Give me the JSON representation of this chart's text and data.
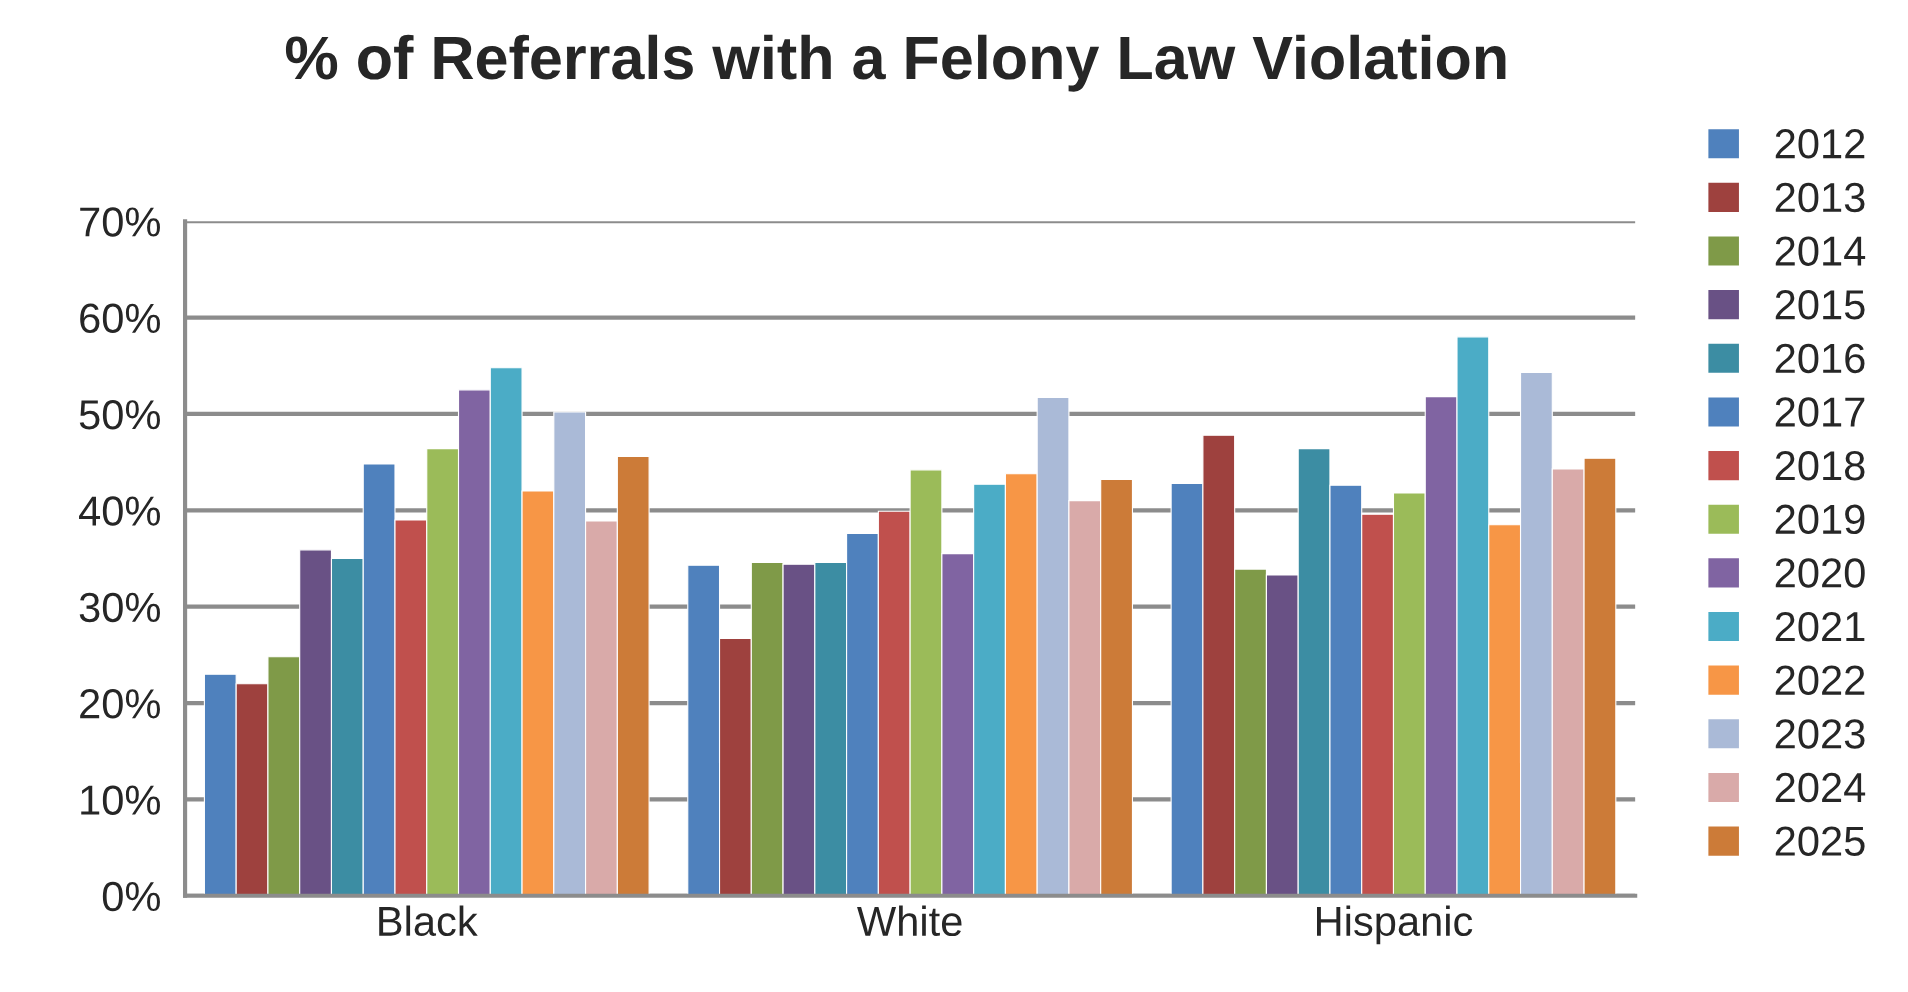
{
  "chart_data": {
    "type": "bar",
    "title": "% of Referrals with a Felony Law Violation",
    "categories": [
      "Black",
      "White",
      "Hispanic"
    ],
    "series": [
      {
        "name": "2012",
        "color": "#4f81bd",
        "values": [
          23.0,
          34.3,
          42.8
        ]
      },
      {
        "name": "2013",
        "color": "#9e413e",
        "values": [
          22.0,
          26.7,
          47.8
        ]
      },
      {
        "name": "2014",
        "color": "#7f9a48",
        "values": [
          24.8,
          34.6,
          33.9
        ]
      },
      {
        "name": "2015",
        "color": "#695185",
        "values": [
          35.9,
          34.4,
          33.3
        ]
      },
      {
        "name": "2016",
        "color": "#3c8da3",
        "values": [
          35.0,
          34.6,
          46.4
        ]
      },
      {
        "name": "2017",
        "color": "#4f81bd",
        "values": [
          44.8,
          37.6,
          42.6
        ]
      },
      {
        "name": "2018",
        "color": "#c0504d",
        "values": [
          39.0,
          39.9,
          39.6
        ]
      },
      {
        "name": "2019",
        "color": "#9bbb59",
        "values": [
          46.4,
          44.2,
          41.8
        ]
      },
      {
        "name": "2020",
        "color": "#8064a2",
        "values": [
          52.5,
          35.5,
          51.8
        ]
      },
      {
        "name": "2021",
        "color": "#4bacc6",
        "values": [
          54.8,
          42.7,
          58.0
        ]
      },
      {
        "name": "2022",
        "color": "#f79646",
        "values": [
          42.0,
          43.8,
          38.5
        ]
      },
      {
        "name": "2023",
        "color": "#aabad7",
        "values": [
          50.2,
          51.7,
          54.3
        ]
      },
      {
        "name": "2024",
        "color": "#d9aaa9",
        "values": [
          38.9,
          41.0,
          44.3
        ]
      },
      {
        "name": "2025",
        "color": "#cc7b38",
        "values": [
          45.6,
          43.2,
          45.4
        ]
      }
    ],
    "ylim": [
      0,
      70
    ],
    "yticks": [
      {
        "value": 0,
        "label": "0%"
      },
      {
        "value": 10,
        "label": "10%"
      },
      {
        "value": 20,
        "label": "20%"
      },
      {
        "value": 30,
        "label": "30%"
      },
      {
        "value": 40,
        "label": "40%"
      },
      {
        "value": 50,
        "label": "50%"
      },
      {
        "value": 60,
        "label": "60%"
      },
      {
        "value": 70,
        "label": "70%"
      }
    ],
    "grid": "y",
    "legend": "right"
  }
}
